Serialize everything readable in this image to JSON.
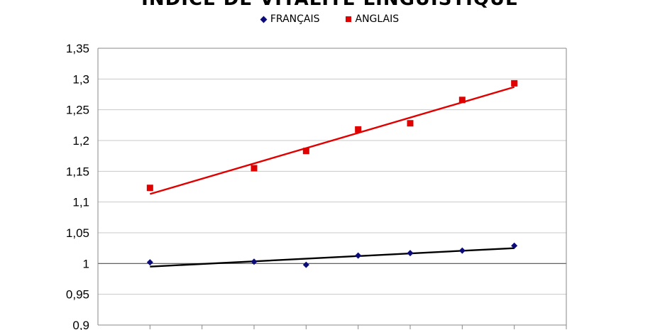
{
  "chart_data": {
    "type": "scatter",
    "title": "INDICE DE VITALITÉ LINGUISTIQUE",
    "xlabel": "",
    "ylabel": "",
    "x": [
      1,
      3,
      4,
      5,
      6,
      7,
      8
    ],
    "xlim": [
      0,
      9
    ],
    "ylim": [
      0.9,
      1.35
    ],
    "y_ticks": [
      "0,9",
      "0,95",
      "1",
      "1,05",
      "1,1",
      "1,15",
      "1,2",
      "1,25",
      "1,3",
      "1,35"
    ],
    "grid": true,
    "legend": "top",
    "series": [
      {
        "name": "FRANÇAIS",
        "marker": "diamond",
        "color": "#0c0c78",
        "trend_color": "#000000",
        "values": [
          1.002,
          1.003,
          0.998,
          1.013,
          1.017,
          1.021,
          1.029
        ],
        "trend": [
          0.995,
          1.025
        ]
      },
      {
        "name": "ANGLAIS",
        "marker": "square",
        "color": "#e00000",
        "trend_color": "#e00000",
        "values": [
          1.123,
          1.155,
          1.183,
          1.218,
          1.228,
          1.266,
          1.293
        ],
        "trend": [
          1.113,
          1.287
        ]
      }
    ]
  }
}
